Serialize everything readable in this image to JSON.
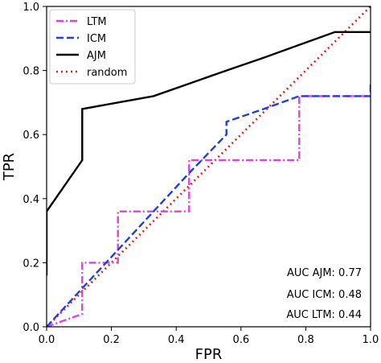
{
  "chart_data": {
    "type": "line",
    "xlabel": "FPR",
    "ylabel": "TPR",
    "xlim": [
      0,
      1
    ],
    "ylim": [
      0,
      1
    ],
    "xticks": [
      "0.0",
      "0.2",
      "0.4",
      "0.6",
      "0.8",
      "1.0"
    ],
    "yticks": [
      "0.0",
      "0.2",
      "0.4",
      "0.6",
      "0.8",
      "1.0"
    ],
    "grid": false,
    "legend_position": "top-left",
    "series": [
      {
        "name": "LTM",
        "color": "#e040e0",
        "style": "dashdot",
        "x": [
          0.0,
          0.11,
          0.11,
          0.22,
          0.22,
          0.44,
          0.44,
          0.78,
          0.78,
          1.0
        ],
        "y": [
          0.0,
          0.04,
          0.2,
          0.2,
          0.36,
          0.36,
          0.52,
          0.52,
          0.72,
          0.72
        ]
      },
      {
        "name": "ICM",
        "color": "#1f3fdf",
        "style": "dashed",
        "x": [
          0.0,
          0.11,
          0.22,
          0.33,
          0.44,
          0.555,
          0.555,
          0.67,
          0.78,
          1.0,
          1.0
        ],
        "y": [
          0.0,
          0.12,
          0.24,
          0.36,
          0.48,
          0.6,
          0.64,
          0.68,
          0.72,
          0.72,
          0.76
        ]
      },
      {
        "name": "AJM",
        "color": "#000000",
        "style": "solid",
        "x": [
          0.0,
          0.0,
          0.0,
          0.11,
          0.11,
          0.33,
          0.555,
          0.67,
          0.89,
          1.0
        ],
        "y": [
          0.16,
          0.16,
          0.36,
          0.52,
          0.68,
          0.72,
          0.8,
          0.84,
          0.92,
          0.92
        ]
      },
      {
        "name": "random",
        "color": "#e02020",
        "style": "dotted",
        "x": [
          0.0,
          1.0
        ],
        "y": [
          0.0,
          1.0
        ]
      }
    ],
    "annotations": [
      "AUC AJM: 0.77",
      "AUC ICM: 0.48",
      "AUC LTM: 0.44"
    ]
  }
}
